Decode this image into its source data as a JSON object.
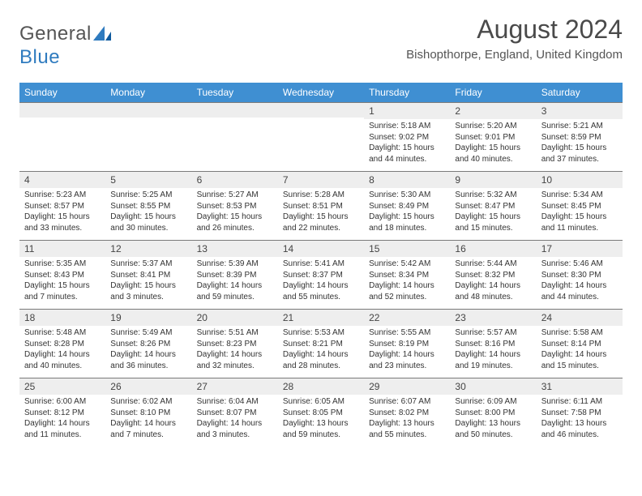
{
  "logo": {
    "word1": "General",
    "word2": "Blue"
  },
  "header": {
    "month_title": "August 2024",
    "location": "Bishopthorpe, England, United Kingdom"
  },
  "colors": {
    "header_bg": "#3f8fd2",
    "header_text": "#ffffff",
    "band_bg": "#eeeeee",
    "rule": "#7a7a7a",
    "logo_accent": "#2f7bbf"
  },
  "day_names": [
    "Sunday",
    "Monday",
    "Tuesday",
    "Wednesday",
    "Thursday",
    "Friday",
    "Saturday"
  ],
  "weeks": [
    [
      null,
      null,
      null,
      null,
      {
        "n": "1",
        "sr": "Sunrise: 5:18 AM",
        "ss": "Sunset: 9:02 PM",
        "d1": "Daylight: 15 hours",
        "d2": "and 44 minutes."
      },
      {
        "n": "2",
        "sr": "Sunrise: 5:20 AM",
        "ss": "Sunset: 9:01 PM",
        "d1": "Daylight: 15 hours",
        "d2": "and 40 minutes."
      },
      {
        "n": "3",
        "sr": "Sunrise: 5:21 AM",
        "ss": "Sunset: 8:59 PM",
        "d1": "Daylight: 15 hours",
        "d2": "and 37 minutes."
      }
    ],
    [
      {
        "n": "4",
        "sr": "Sunrise: 5:23 AM",
        "ss": "Sunset: 8:57 PM",
        "d1": "Daylight: 15 hours",
        "d2": "and 33 minutes."
      },
      {
        "n": "5",
        "sr": "Sunrise: 5:25 AM",
        "ss": "Sunset: 8:55 PM",
        "d1": "Daylight: 15 hours",
        "d2": "and 30 minutes."
      },
      {
        "n": "6",
        "sr": "Sunrise: 5:27 AM",
        "ss": "Sunset: 8:53 PM",
        "d1": "Daylight: 15 hours",
        "d2": "and 26 minutes."
      },
      {
        "n": "7",
        "sr": "Sunrise: 5:28 AM",
        "ss": "Sunset: 8:51 PM",
        "d1": "Daylight: 15 hours",
        "d2": "and 22 minutes."
      },
      {
        "n": "8",
        "sr": "Sunrise: 5:30 AM",
        "ss": "Sunset: 8:49 PM",
        "d1": "Daylight: 15 hours",
        "d2": "and 18 minutes."
      },
      {
        "n": "9",
        "sr": "Sunrise: 5:32 AM",
        "ss": "Sunset: 8:47 PM",
        "d1": "Daylight: 15 hours",
        "d2": "and 15 minutes."
      },
      {
        "n": "10",
        "sr": "Sunrise: 5:34 AM",
        "ss": "Sunset: 8:45 PM",
        "d1": "Daylight: 15 hours",
        "d2": "and 11 minutes."
      }
    ],
    [
      {
        "n": "11",
        "sr": "Sunrise: 5:35 AM",
        "ss": "Sunset: 8:43 PM",
        "d1": "Daylight: 15 hours",
        "d2": "and 7 minutes."
      },
      {
        "n": "12",
        "sr": "Sunrise: 5:37 AM",
        "ss": "Sunset: 8:41 PM",
        "d1": "Daylight: 15 hours",
        "d2": "and 3 minutes."
      },
      {
        "n": "13",
        "sr": "Sunrise: 5:39 AM",
        "ss": "Sunset: 8:39 PM",
        "d1": "Daylight: 14 hours",
        "d2": "and 59 minutes."
      },
      {
        "n": "14",
        "sr": "Sunrise: 5:41 AM",
        "ss": "Sunset: 8:37 PM",
        "d1": "Daylight: 14 hours",
        "d2": "and 55 minutes."
      },
      {
        "n": "15",
        "sr": "Sunrise: 5:42 AM",
        "ss": "Sunset: 8:34 PM",
        "d1": "Daylight: 14 hours",
        "d2": "and 52 minutes."
      },
      {
        "n": "16",
        "sr": "Sunrise: 5:44 AM",
        "ss": "Sunset: 8:32 PM",
        "d1": "Daylight: 14 hours",
        "d2": "and 48 minutes."
      },
      {
        "n": "17",
        "sr": "Sunrise: 5:46 AM",
        "ss": "Sunset: 8:30 PM",
        "d1": "Daylight: 14 hours",
        "d2": "and 44 minutes."
      }
    ],
    [
      {
        "n": "18",
        "sr": "Sunrise: 5:48 AM",
        "ss": "Sunset: 8:28 PM",
        "d1": "Daylight: 14 hours",
        "d2": "and 40 minutes."
      },
      {
        "n": "19",
        "sr": "Sunrise: 5:49 AM",
        "ss": "Sunset: 8:26 PM",
        "d1": "Daylight: 14 hours",
        "d2": "and 36 minutes."
      },
      {
        "n": "20",
        "sr": "Sunrise: 5:51 AM",
        "ss": "Sunset: 8:23 PM",
        "d1": "Daylight: 14 hours",
        "d2": "and 32 minutes."
      },
      {
        "n": "21",
        "sr": "Sunrise: 5:53 AM",
        "ss": "Sunset: 8:21 PM",
        "d1": "Daylight: 14 hours",
        "d2": "and 28 minutes."
      },
      {
        "n": "22",
        "sr": "Sunrise: 5:55 AM",
        "ss": "Sunset: 8:19 PM",
        "d1": "Daylight: 14 hours",
        "d2": "and 23 minutes."
      },
      {
        "n": "23",
        "sr": "Sunrise: 5:57 AM",
        "ss": "Sunset: 8:16 PM",
        "d1": "Daylight: 14 hours",
        "d2": "and 19 minutes."
      },
      {
        "n": "24",
        "sr": "Sunrise: 5:58 AM",
        "ss": "Sunset: 8:14 PM",
        "d1": "Daylight: 14 hours",
        "d2": "and 15 minutes."
      }
    ],
    [
      {
        "n": "25",
        "sr": "Sunrise: 6:00 AM",
        "ss": "Sunset: 8:12 PM",
        "d1": "Daylight: 14 hours",
        "d2": "and 11 minutes."
      },
      {
        "n": "26",
        "sr": "Sunrise: 6:02 AM",
        "ss": "Sunset: 8:10 PM",
        "d1": "Daylight: 14 hours",
        "d2": "and 7 minutes."
      },
      {
        "n": "27",
        "sr": "Sunrise: 6:04 AM",
        "ss": "Sunset: 8:07 PM",
        "d1": "Daylight: 14 hours",
        "d2": "and 3 minutes."
      },
      {
        "n": "28",
        "sr": "Sunrise: 6:05 AM",
        "ss": "Sunset: 8:05 PM",
        "d1": "Daylight: 13 hours",
        "d2": "and 59 minutes."
      },
      {
        "n": "29",
        "sr": "Sunrise: 6:07 AM",
        "ss": "Sunset: 8:02 PM",
        "d1": "Daylight: 13 hours",
        "d2": "and 55 minutes."
      },
      {
        "n": "30",
        "sr": "Sunrise: 6:09 AM",
        "ss": "Sunset: 8:00 PM",
        "d1": "Daylight: 13 hours",
        "d2": "and 50 minutes."
      },
      {
        "n": "31",
        "sr": "Sunrise: 6:11 AM",
        "ss": "Sunset: 7:58 PM",
        "d1": "Daylight: 13 hours",
        "d2": "and 46 minutes."
      }
    ]
  ]
}
